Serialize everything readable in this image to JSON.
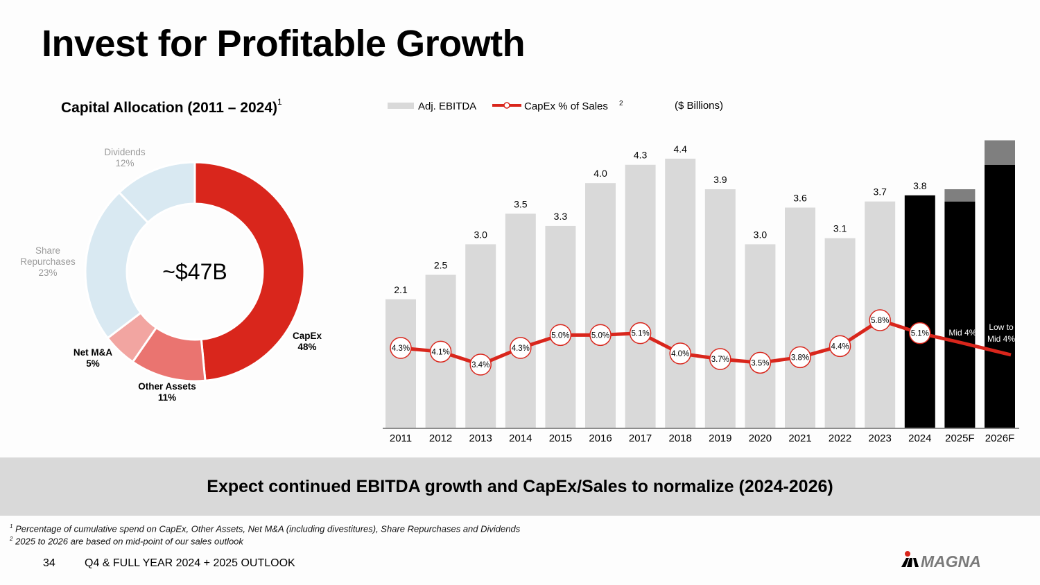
{
  "title": "Invest for Profitable Growth",
  "banner": "Expect continued EBITDA growth and CapEx/Sales to normalize (2024-2026)",
  "footnotes": [
    {
      "mark": "1",
      "text": "Percentage of cumulative spend on CapEx, Other Assets, Net M&A (including divestitures), Share Repurchases and Dividends"
    },
    {
      "mark": "2",
      "text": "2025 to 2026 are based on mid-point of our sales outlook"
    }
  ],
  "footer": {
    "page": "34",
    "text": "Q4 & FULL YEAR 2024 + 2025 OUTLOOK",
    "logo": "MAGNA"
  },
  "chart_data": [
    {
      "type": "pie",
      "title": "Capital Allocation (2011 – 2024)",
      "title_footnote": "1",
      "center_label": "~$47B",
      "slices": [
        {
          "label": "CapEx",
          "value": 48,
          "color": "#d9261c"
        },
        {
          "label": "Other Assets",
          "value": 11,
          "color": "#ea7470"
        },
        {
          "label": "Net M&A",
          "value": 5,
          "color": "#f2a5a1"
        },
        {
          "label": "Share Repurchases",
          "value": 23,
          "color": "#d9e9f2"
        },
        {
          "label": "Dividends",
          "value": 12,
          "color": "#d9e9f2"
        }
      ]
    },
    {
      "type": "bar",
      "unit_note": "($ Billions)",
      "legend": [
        {
          "label": "Adj. EBITDA",
          "kind": "bar"
        },
        {
          "label": "CapEx % of Sales",
          "kind": "line",
          "footnote": "2"
        }
      ],
      "categories": [
        "2011",
        "2012",
        "2013",
        "2014",
        "2015",
        "2016",
        "2017",
        "2018",
        "2019",
        "2020",
        "2021",
        "2022",
        "2023",
        "2024",
        "2025F",
        "2026F"
      ],
      "series": [
        {
          "name": "Adj. EBITDA",
          "values": [
            2.1,
            2.5,
            3.0,
            3.5,
            3.3,
            4.0,
            4.3,
            4.4,
            3.9,
            3.0,
            3.6,
            3.1,
            3.7,
            3.8,
            3.7,
            4.3
          ],
          "labels": [
            "2.1",
            "2.5",
            "3.0",
            "3.5",
            "3.3",
            "4.0",
            "4.3",
            "4.4",
            "3.9",
            "3.0",
            "3.6",
            "3.1",
            "3.7",
            "3.8",
            "",
            ""
          ]
        },
        {
          "name": "Adj. EBITDA range (forecast)",
          "values": [
            0,
            0,
            0,
            0,
            0,
            0,
            0,
            0,
            0,
            0,
            0,
            0,
            0,
            0,
            0.2,
            0.4
          ]
        },
        {
          "name": "CapEx % of Sales",
          "values": [
            4.3,
            4.1,
            3.4,
            4.3,
            5.0,
            5.0,
            5.1,
            4.0,
            3.7,
            3.5,
            3.8,
            4.4,
            5.8,
            5.1,
            4.5,
            4.0
          ],
          "labels": [
            "4.3%",
            "4.1%",
            "3.4%",
            "4.3%",
            "5.0%",
            "5.0%",
            "5.1%",
            "4.0%",
            "3.7%",
            "3.5%",
            "3.8%",
            "4.4%",
            "5.8%",
            "5.1%",
            "Mid 4%",
            "Low to Mid 4%"
          ]
        }
      ],
      "colors": {
        "historical": "#d9d9d9",
        "actual_latest": "#000000",
        "forecast_range": "#7f7f7f",
        "line": "#d9261c"
      },
      "ylim": [
        0,
        5
      ]
    }
  ]
}
